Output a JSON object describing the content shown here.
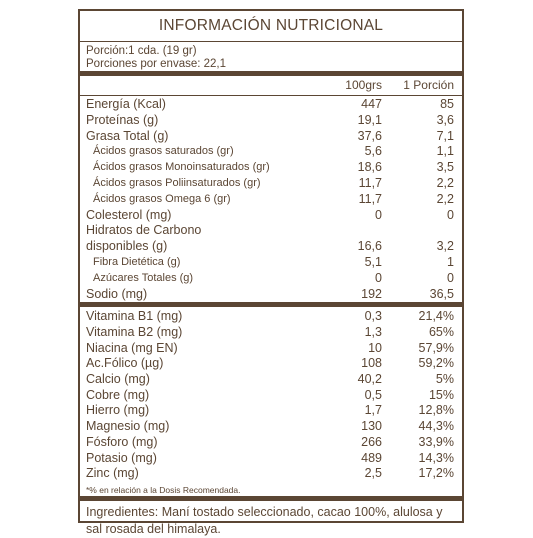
{
  "title": "INFORMACIÓN NUTRICIONAL",
  "serving": {
    "portion": "Porción:1 cda. (19 gr)",
    "servings": "Porciones por envase: 22,1"
  },
  "columns": {
    "col1": "100grs",
    "col2": "1 Porción"
  },
  "nutrients": [
    {
      "name": "Energía (Kcal)",
      "v100": "447",
      "vpor": "85",
      "sub": false
    },
    {
      "name": "Proteínas (g)",
      "v100": "19,1",
      "vpor": "3,6",
      "sub": false
    },
    {
      "name": "Grasa Total (g)",
      "v100": "37,6",
      "vpor": "7,1",
      "sub": false
    },
    {
      "name": "Ácidos grasos saturados (gr)",
      "v100": "5,6",
      "vpor": "1,1",
      "sub": true
    },
    {
      "name": "Ácidos grasos Monoinsaturados (gr)",
      "v100": "18,6",
      "vpor": "3,5",
      "sub": true
    },
    {
      "name": "Ácidos grasos Poliinsaturados (gr)",
      "v100": "11,7",
      "vpor": "2,2",
      "sub": true
    },
    {
      "name": "Ácidos grasos Omega 6 (gr)",
      "v100": "11,7",
      "vpor": "2,2",
      "sub": true
    },
    {
      "name": "Colesterol (mg)",
      "v100": "0",
      "vpor": "0",
      "sub": false
    },
    {
      "name": "Hidratos de Carbono",
      "v100": "",
      "vpor": "",
      "sub": false
    },
    {
      "name": "disponibles (g)",
      "v100": "16,6",
      "vpor": "3,2",
      "sub": false
    },
    {
      "name": "Fibra Dietética (g)",
      "v100": "5,1",
      "vpor": "1",
      "sub": true
    },
    {
      "name": "Azúcares Totales (g)",
      "v100": "0",
      "vpor": "0",
      "sub": true
    },
    {
      "name": "Sodio (mg)",
      "v100": "192",
      "vpor": "36,5",
      "sub": false
    }
  ],
  "vitamins": [
    {
      "name": "Vitamina B1 (mg)",
      "v100": "0,3",
      "vpor": "21,4%"
    },
    {
      "name": "Vitamina B2 (mg)",
      "v100": "1,3",
      "vpor": "65%"
    },
    {
      "name": "Niacina (mg EN)",
      "v100": "10",
      "vpor": "57,9%"
    },
    {
      "name": "Ac.Fólico (µg)",
      "v100": "108",
      "vpor": "59,2%"
    },
    {
      "name": "Calcio (mg)",
      "v100": "40,2",
      "vpor": "5%"
    },
    {
      "name": "Cobre (mg)",
      "v100": "0,5",
      "vpor": "15%"
    },
    {
      "name": "Hierro (mg)",
      "v100": "1,7",
      "vpor": "12,8%"
    },
    {
      "name": "Magnesio (mg)",
      "v100": "130",
      "vpor": "44,3%"
    },
    {
      "name": "Fósforo (mg)",
      "v100": "266",
      "vpor": "33,9%"
    },
    {
      "name": "Potasio (mg)",
      "v100": "489",
      "vpor": "14,3%"
    },
    {
      "name": "Zinc (mg)",
      "v100": "2,5",
      "vpor": "17,2%"
    }
  ],
  "note": "*% en relación a la Dosis Recomendada.",
  "ingredients": {
    "label": "Ingredientes:",
    "text": " Maní tostado seleccionado, cacao 100%, alulosa y sal rosada del himalaya."
  }
}
